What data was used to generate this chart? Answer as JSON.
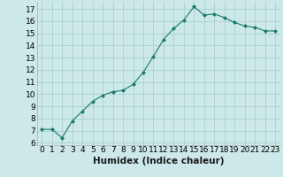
{
  "x": [
    0,
    1,
    2,
    3,
    4,
    5,
    6,
    7,
    8,
    9,
    10,
    11,
    12,
    13,
    14,
    15,
    16,
    17,
    18,
    19,
    20,
    21,
    22,
    23
  ],
  "y": [
    7.1,
    7.1,
    6.4,
    7.8,
    8.6,
    9.4,
    9.9,
    10.2,
    10.3,
    10.8,
    11.8,
    13.1,
    14.5,
    15.4,
    16.1,
    17.2,
    16.5,
    16.6,
    16.3,
    15.9,
    15.6,
    15.5,
    15.2,
    15.2
  ],
  "line_color": "#1a7a6a",
  "marker": "D",
  "marker_size": 2,
  "bg_color": "#cce8e8",
  "grid_color": "#aacfcf",
  "xlabel": "Humidex (Indice chaleur)",
  "ylim": [
    5.8,
    17.6
  ],
  "xlim": [
    -0.5,
    23.5
  ],
  "yticks": [
    6,
    7,
    8,
    9,
    10,
    11,
    12,
    13,
    14,
    15,
    16,
    17
  ],
  "xticks": [
    0,
    1,
    2,
    3,
    4,
    5,
    6,
    7,
    8,
    9,
    10,
    11,
    12,
    13,
    14,
    15,
    16,
    17,
    18,
    19,
    20,
    21,
    22,
    23
  ],
  "xlabel_fontsize": 7.5,
  "tick_fontsize": 6.5
}
